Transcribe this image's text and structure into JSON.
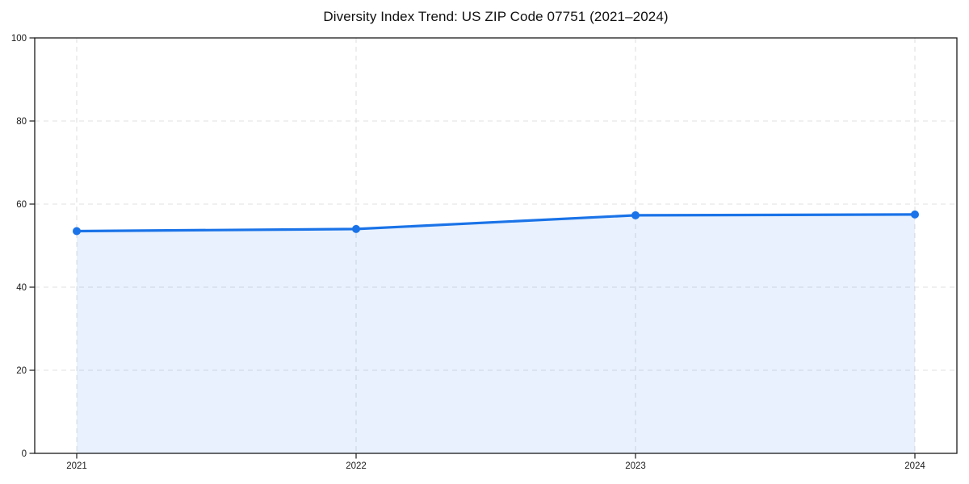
{
  "chart_data": {
    "type": "area",
    "title": "Diversity Index Trend: US ZIP Code 07751 (2021–2024)",
    "categories": [
      "2021",
      "2022",
      "2023",
      "2024"
    ],
    "values": [
      53.5,
      54.0,
      57.3,
      57.5
    ],
    "xlabel": "",
    "ylabel": "",
    "ylim": [
      0,
      100
    ],
    "yticks": [
      0,
      20,
      40,
      60,
      80,
      100
    ],
    "grid": true,
    "grid_style": "dashed",
    "legend": "none",
    "marker": "circle",
    "colors": {
      "line": "#1a73e8",
      "fill": "#1a73e8",
      "fill_opacity": 0.1,
      "grid": "#e0e0e0",
      "axis": "#1a1a1a",
      "text": "#1a1a1a",
      "background": "#ffffff"
    }
  }
}
